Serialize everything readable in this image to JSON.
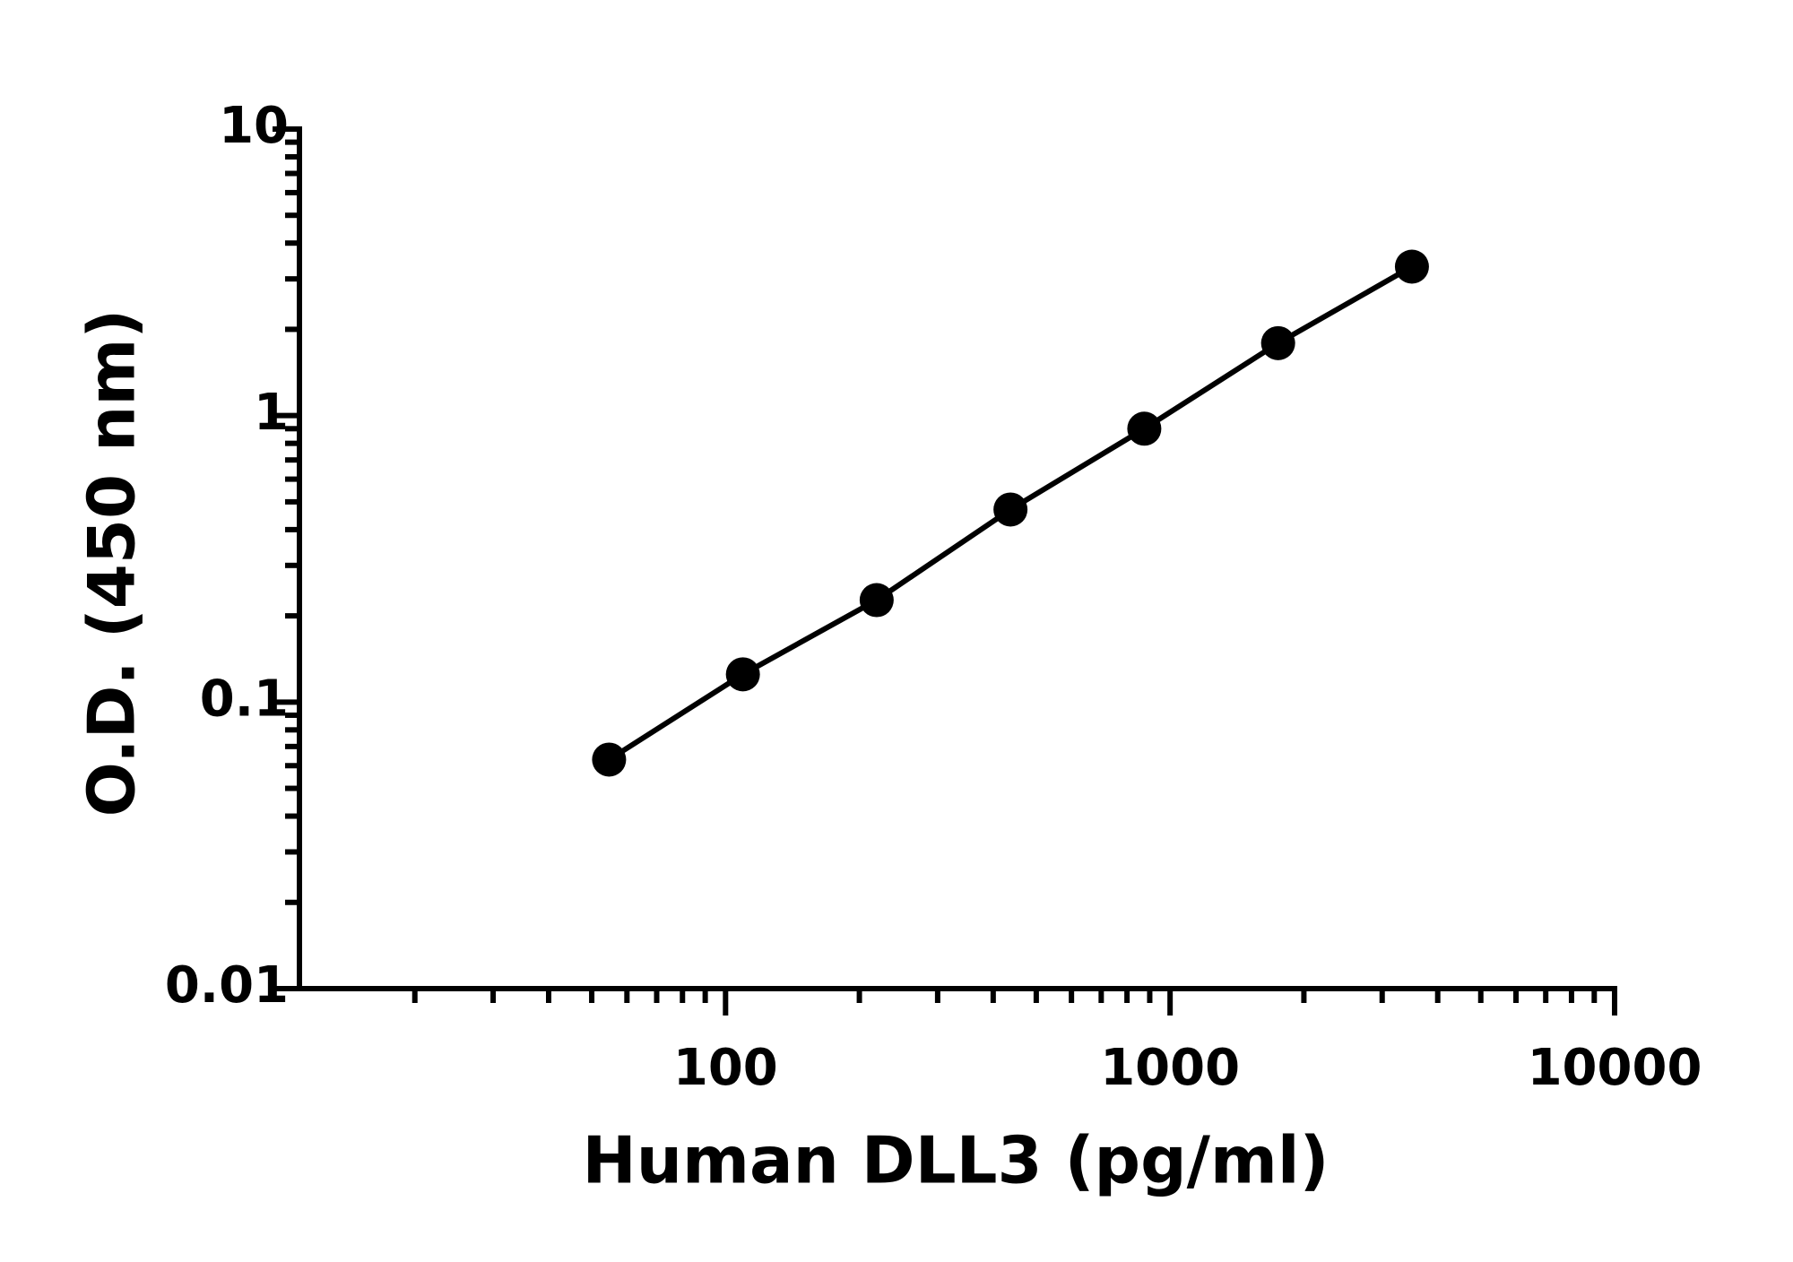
{
  "chart_data": {
    "type": "line",
    "x_label": "Human DLL3 (pg/ml)",
    "y_label": "O.D. (450 nm)",
    "x": [
      54.7,
      109.4,
      218.75,
      437.5,
      875,
      1750,
      3500
    ],
    "series": [
      {
        "color": "#000000",
        "values": [
          0.063,
          0.125,
          0.227,
          0.47,
          0.9,
          1.79,
          3.31
        ]
      }
    ],
    "xscale": "log",
    "yscale": "log",
    "xlim": [
      11,
      10000
    ],
    "xticks": [
      100,
      1000,
      10000
    ],
    "ylim": [
      0.01,
      10
    ],
    "yticks": [
      0.01,
      0.1,
      1,
      10
    ],
    "markers": true
  }
}
